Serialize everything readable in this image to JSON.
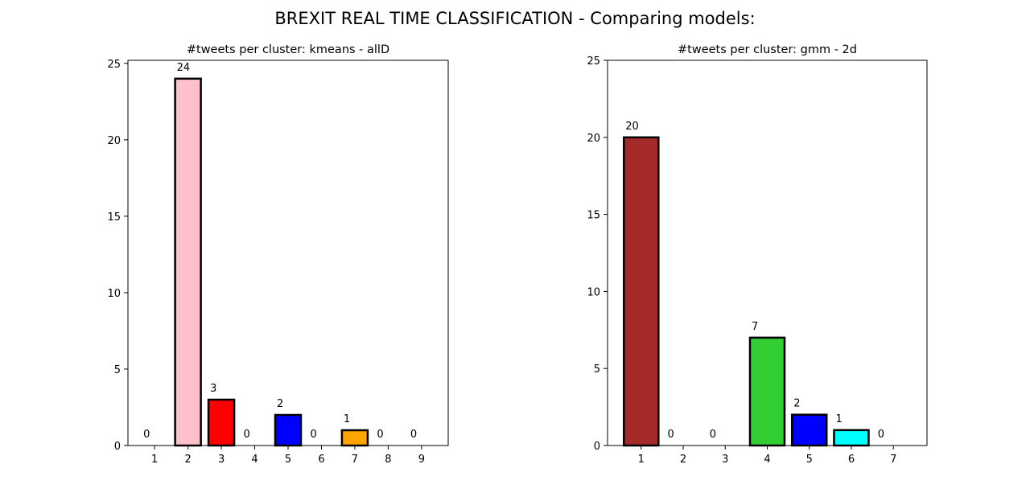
{
  "figure": {
    "suptitle": "BREXIT REAL TIME CLASSIFICATION - Comparing models:"
  },
  "chart_data": [
    {
      "type": "bar",
      "title": "#tweets per cluster: kmeans - allD",
      "xlabel": "",
      "ylabel": "",
      "categories": [
        "1",
        "2",
        "3",
        "4",
        "5",
        "6",
        "7",
        "8",
        "9"
      ],
      "values": [
        0,
        24,
        3,
        0,
        2,
        0,
        1,
        0,
        0
      ],
      "colors": [
        "#1f77b4",
        "#ffc0cb",
        "#ff0000",
        "#808080",
        "#0000ff",
        "#800080",
        "#ffa500",
        "#00ff00",
        "#ffff00"
      ],
      "ylim": [
        0,
        25.2
      ],
      "yticks": [
        0,
        5,
        10,
        15,
        20,
        25
      ],
      "edgecolor": "#000000",
      "data_labels": true
    },
    {
      "type": "bar",
      "title": "#tweets per cluster: gmm - 2d",
      "xlabel": "",
      "ylabel": "",
      "categories": [
        "1",
        "2",
        "3",
        "4",
        "5",
        "6",
        "7"
      ],
      "values": [
        20,
        0,
        0,
        7,
        2,
        1,
        0
      ],
      "colors": [
        "#a52a2a",
        "#808080",
        "#800080",
        "#32cd32",
        "#0000ff",
        "#00ffff",
        "#ffc0cb"
      ],
      "ylim": [
        0,
        25
      ],
      "yticks": [
        0,
        5,
        10,
        15,
        20,
        25
      ],
      "edgecolor": "#000000",
      "data_labels": true
    }
  ]
}
